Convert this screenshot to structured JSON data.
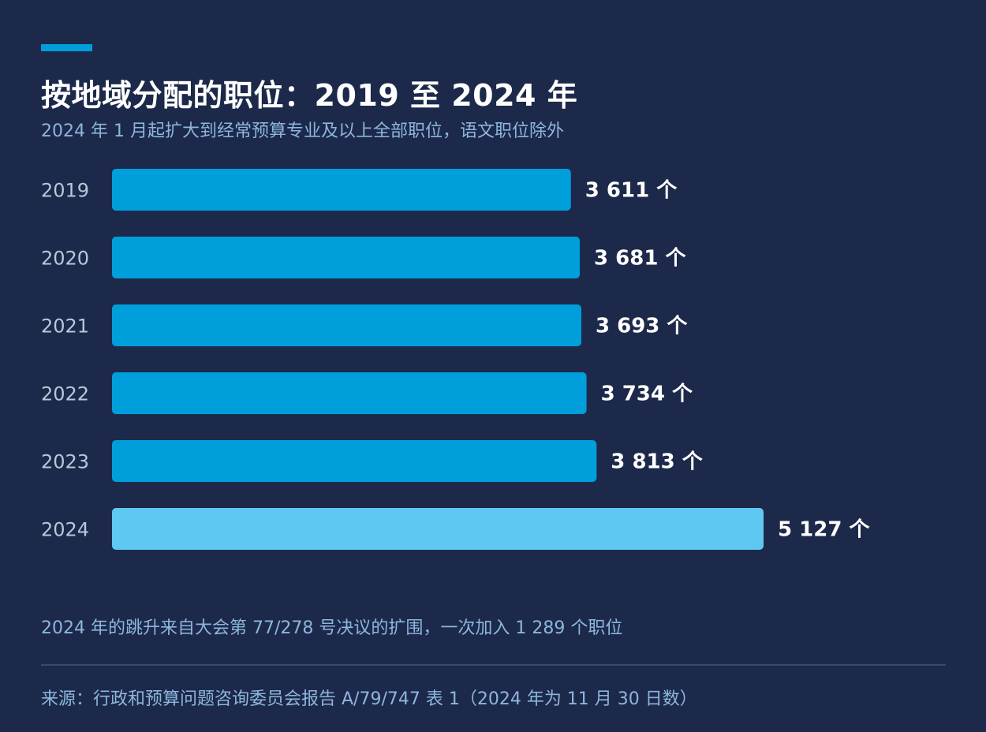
{
  "header": {
    "title": "按地域分配的职位：2019 至 2024 年",
    "subtitle": "2024 年 1 月起扩大到经常预算专业及以上全部职位，语文职位除外"
  },
  "chart_data": {
    "type": "bar",
    "orientation": "horizontal",
    "title": "按地域分配的职位：2019 至 2024 年",
    "subtitle": "2024 年 1 月起扩大到经常预算专业及以上全部职位，语文职位除外",
    "categories": [
      "2019",
      "2020",
      "2021",
      "2022",
      "2023",
      "2024"
    ],
    "values": [
      3611,
      3681,
      3693,
      3734,
      3813,
      5127
    ],
    "value_labels": [
      "3 611 个",
      "3 681 个",
      "3 693 个",
      "3 734 个",
      "3 813 个",
      "5 127 个"
    ],
    "bar_colors": [
      "#009fdb",
      "#009fdb",
      "#009fdb",
      "#009fdb",
      "#009fdb",
      "#5ec8f2"
    ],
    "xlim": [
      0,
      5127
    ],
    "grid": false,
    "legend": "none"
  },
  "footer": {
    "note": "2024 年的跳升来自大会第 77/278 号决议的扩围，一次加入 1 289 个职位",
    "source": "来源：行政和预算问题咨询委员会报告 A/79/747 表 1（2024 年为 11 月 30 日数）"
  },
  "colors": {
    "background": "#1c294a",
    "accent": "#009fdb",
    "highlight": "#5ec8f2"
  }
}
